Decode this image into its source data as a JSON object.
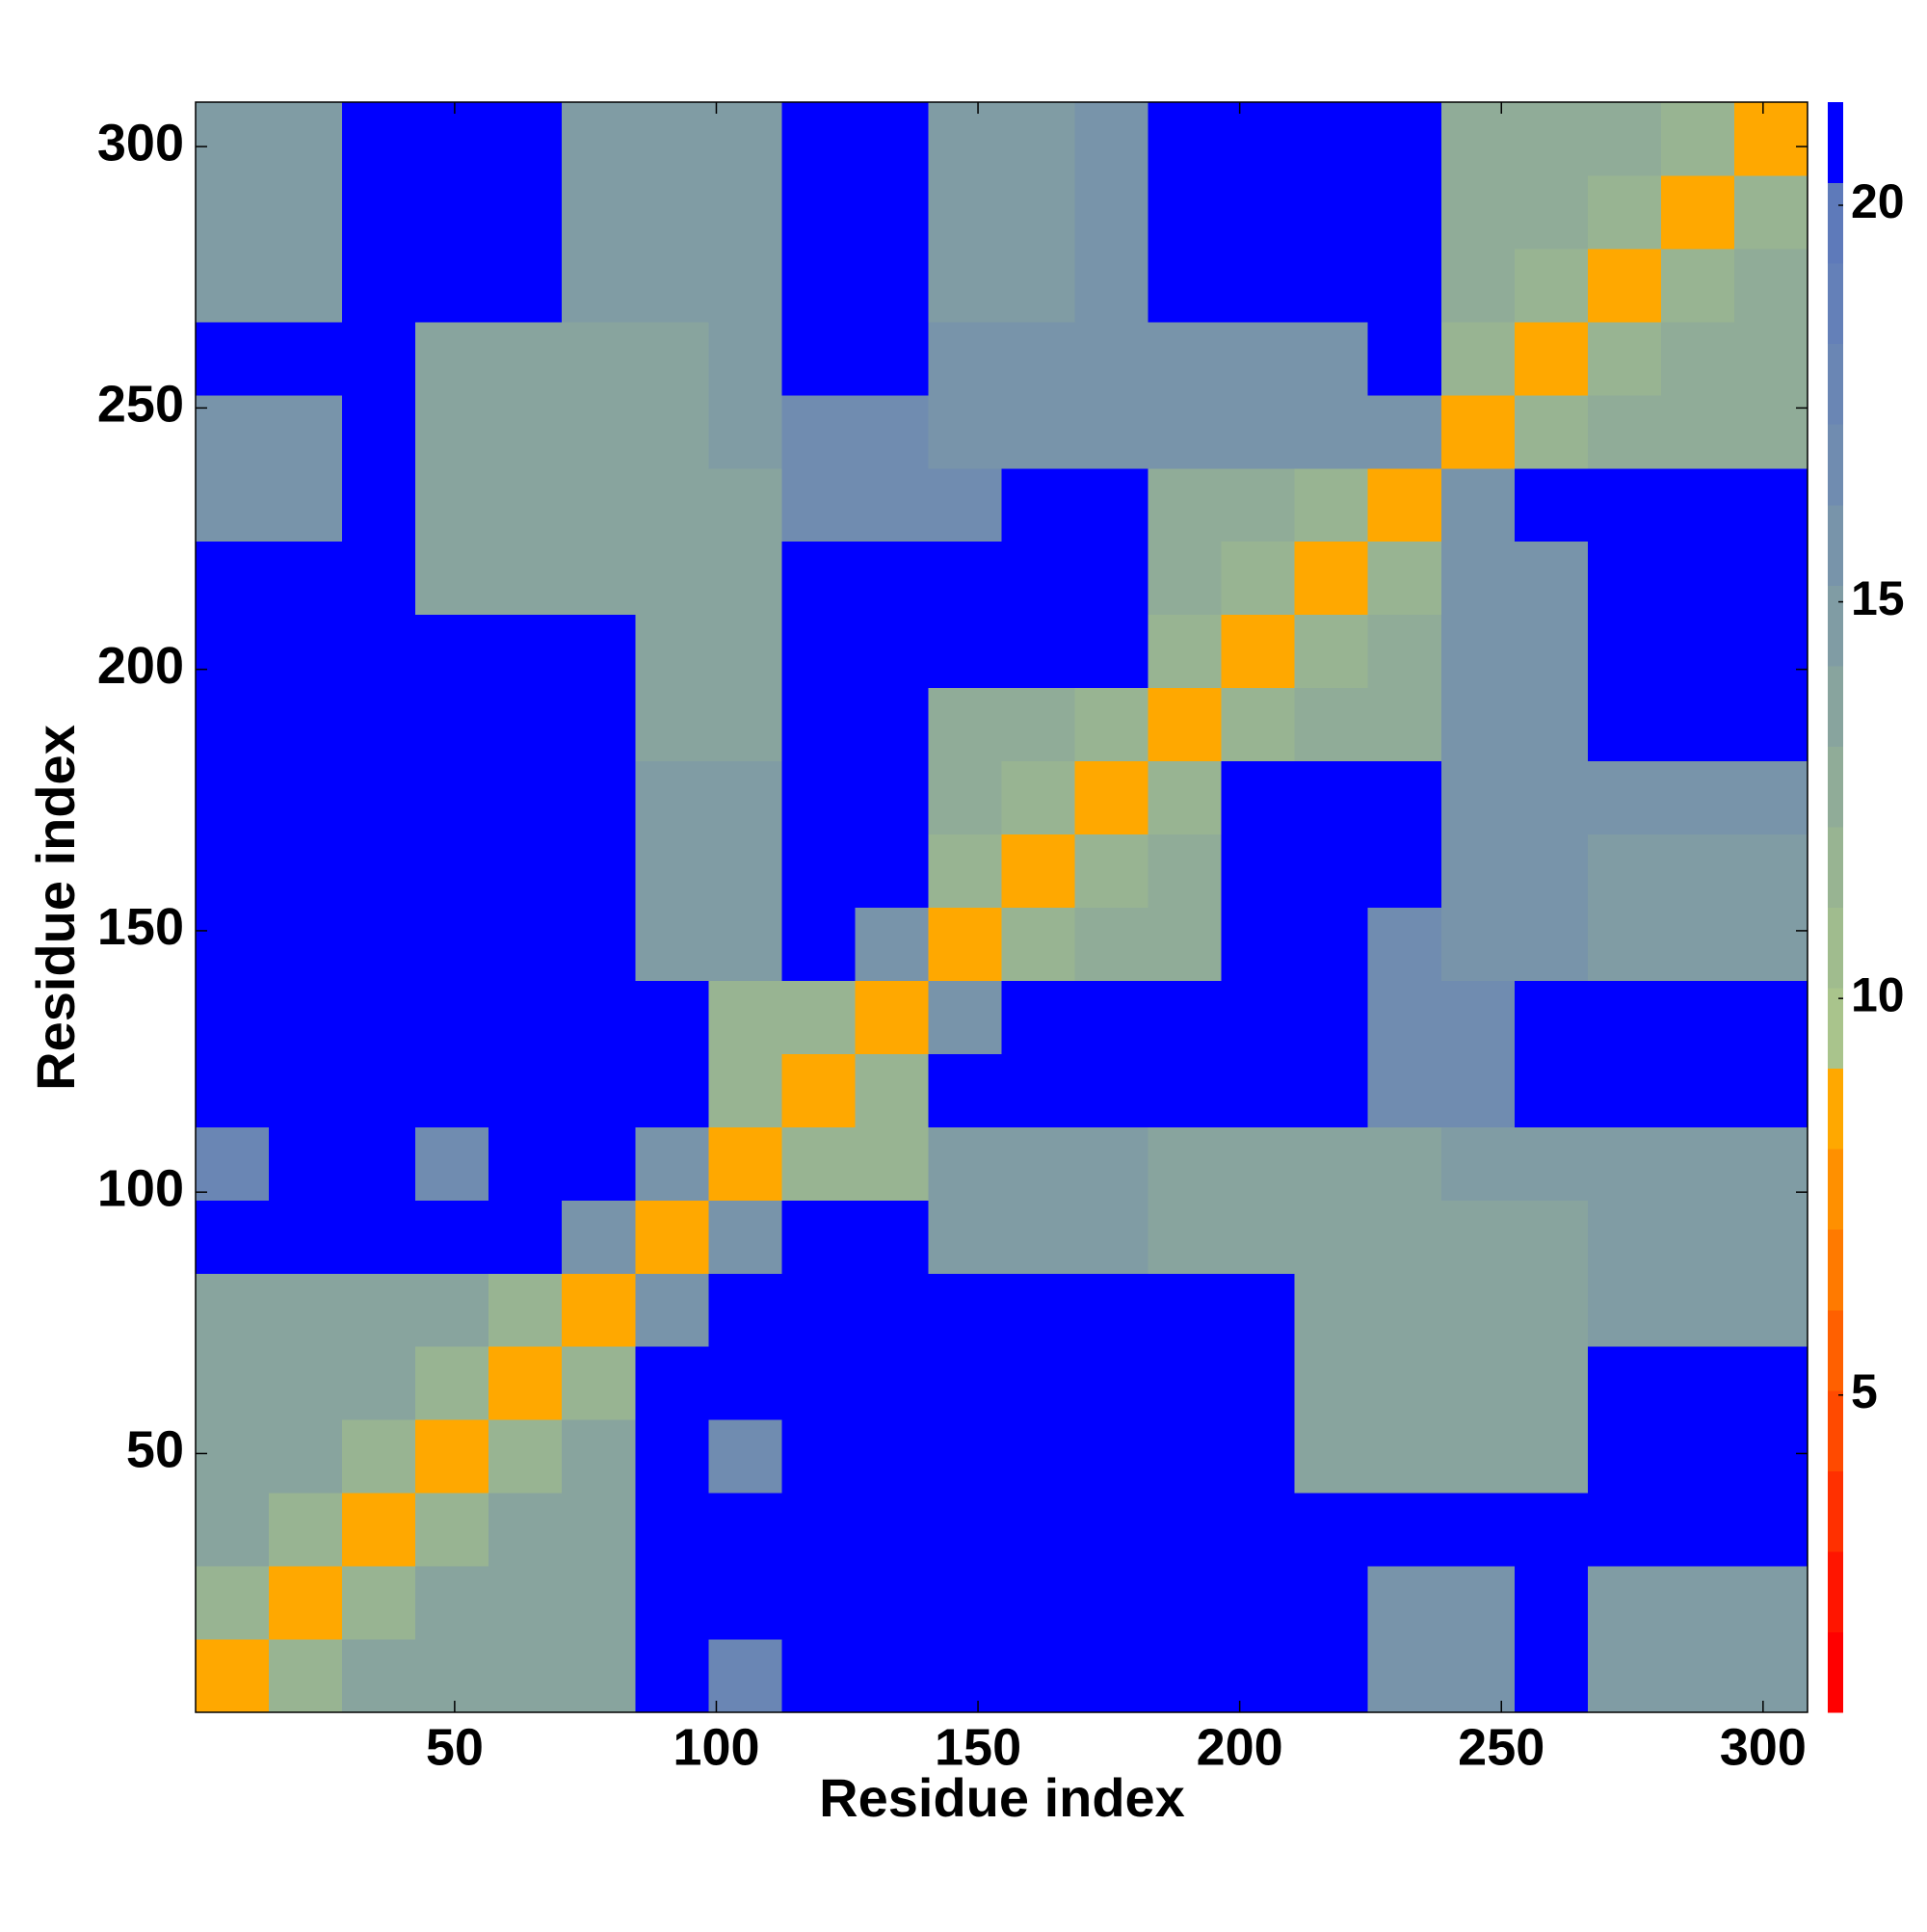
{
  "chart_data": {
    "type": "heatmap",
    "xlabel": "Residue index",
    "ylabel": "Residue index",
    "xbins": [
      0.5,
      14.5,
      28.5,
      42.5,
      56.5,
      70.5,
      84.5,
      98.5,
      112.5,
      126.5,
      140.5,
      154.5,
      168.5,
      182.5,
      196.5,
      210.5,
      224.5,
      238.5,
      252.5,
      266.5,
      280.5,
      294.5,
      308.5
    ],
    "ybins": [
      0.5,
      14.5,
      28.5,
      42.5,
      56.5,
      70.5,
      84.5,
      98.5,
      112.5,
      126.5,
      140.5,
      154.5,
      168.5,
      182.5,
      196.5,
      210.5,
      224.5,
      238.5,
      252.5,
      266.5,
      280.5,
      294.5,
      308.5
    ],
    "values": [
      [
        9,
        12,
        14,
        14,
        14,
        14,
        21,
        18,
        21,
        21,
        21,
        21,
        21,
        21,
        21,
        21,
        16,
        16,
        21,
        15,
        15,
        15
      ],
      [
        12,
        9,
        12,
        14,
        14,
        14,
        21,
        21,
        21,
        21,
        21,
        21,
        21,
        21,
        21,
        21,
        16,
        16,
        21,
        15,
        15,
        15
      ],
      [
        14,
        12,
        9,
        12,
        14,
        14,
        21,
        21,
        21,
        21,
        21,
        21,
        21,
        21,
        21,
        21,
        21,
        21,
        21,
        21,
        21,
        21
      ],
      [
        14,
        14,
        12,
        9,
        12,
        14,
        21,
        17,
        21,
        21,
        21,
        21,
        21,
        21,
        21,
        14,
        14,
        14,
        14,
        21,
        21,
        21
      ],
      [
        14,
        14,
        14,
        12,
        9,
        12,
        21,
        21,
        21,
        21,
        21,
        21,
        21,
        21,
        21,
        14,
        14,
        14,
        14,
        21,
        21,
        21
      ],
      [
        14,
        14,
        14,
        14,
        12,
        9,
        16,
        21,
        21,
        21,
        21,
        21,
        21,
        21,
        21,
        14,
        14,
        14,
        14,
        15,
        15,
        15
      ],
      [
        21,
        21,
        21,
        21,
        21,
        16,
        9,
        16,
        21,
        21,
        15,
        15,
        15,
        14,
        14,
        14,
        14,
        14,
        14,
        15,
        15,
        15
      ],
      [
        18,
        21,
        21,
        17,
        21,
        21,
        16,
        9,
        12,
        12,
        15,
        15,
        15,
        14,
        14,
        14,
        14,
        15,
        15,
        15,
        15,
        15
      ],
      [
        21,
        21,
        21,
        21,
        21,
        21,
        21,
        12,
        9,
        12,
        21,
        21,
        21,
        21,
        21,
        21,
        17,
        17,
        21,
        21,
        21,
        21
      ],
      [
        21,
        21,
        21,
        21,
        21,
        21,
        21,
        12,
        12,
        9,
        16,
        21,
        21,
        21,
        21,
        21,
        17,
        17,
        21,
        21,
        21,
        21
      ],
      [
        21,
        21,
        21,
        21,
        21,
        21,
        15,
        15,
        21,
        16,
        9,
        12,
        13,
        13,
        21,
        21,
        17,
        16,
        16,
        15,
        15,
        15
      ],
      [
        21,
        21,
        21,
        21,
        21,
        21,
        15,
        15,
        21,
        21,
        12,
        9,
        12,
        13,
        21,
        21,
        21,
        16,
        16,
        15,
        15,
        15
      ],
      [
        21,
        21,
        21,
        21,
        21,
        21,
        15,
        15,
        21,
        21,
        13,
        12,
        9,
        12,
        21,
        21,
        21,
        16,
        16,
        16,
        16,
        16
      ],
      [
        21,
        21,
        21,
        21,
        21,
        21,
        14,
        14,
        21,
        21,
        13,
        13,
        12,
        9,
        12,
        13,
        13,
        16,
        16,
        21,
        21,
        21
      ],
      [
        21,
        21,
        21,
        21,
        21,
        21,
        14,
        14,
        21,
        21,
        21,
        21,
        21,
        12,
        9,
        12,
        13,
        16,
        16,
        21,
        21,
        21
      ],
      [
        21,
        21,
        21,
        14,
        14,
        14,
        14,
        14,
        21,
        21,
        21,
        21,
        21,
        13,
        12,
        9,
        12,
        16,
        16,
        21,
        21,
        21
      ],
      [
        16,
        16,
        21,
        14,
        14,
        14,
        14,
        14,
        17,
        17,
        17,
        21,
        21,
        13,
        13,
        12,
        9,
        16,
        21,
        21,
        21,
        21
      ],
      [
        16,
        16,
        21,
        14,
        14,
        14,
        14,
        15,
        17,
        17,
        16,
        16,
        16,
        16,
        16,
        16,
        16,
        9,
        12,
        13,
        13,
        13
      ],
      [
        21,
        21,
        21,
        14,
        14,
        14,
        14,
        15,
        21,
        21,
        16,
        16,
        16,
        16,
        16,
        16,
        21,
        12,
        9,
        12,
        13,
        13
      ],
      [
        15,
        15,
        21,
        21,
        21,
        15,
        15,
        15,
        21,
        21,
        15,
        15,
        16,
        21,
        21,
        21,
        21,
        13,
        12,
        9,
        12,
        13
      ],
      [
        15,
        15,
        21,
        21,
        21,
        15,
        15,
        15,
        21,
        21,
        15,
        15,
        16,
        21,
        21,
        21,
        21,
        13,
        13,
        12,
        9,
        12
      ],
      [
        15,
        15,
        21,
        21,
        21,
        15,
        15,
        15,
        21,
        21,
        15,
        15,
        16,
        21,
        21,
        21,
        21,
        13,
        13,
        13,
        12,
        9
      ]
    ],
    "xlim": [
      0.5,
      308.5
    ],
    "ylim": [
      0.5,
      308.5
    ],
    "xticks": [
      50,
      100,
      150,
      200,
      250,
      300
    ],
    "yticks": [
      50,
      100,
      150,
      200,
      250,
      300
    ],
    "clim": [
      1,
      21.3
    ],
    "cticks": [
      5,
      10,
      15,
      20
    ],
    "colorscale": [
      "#ff0000",
      "#ff1500",
      "#ff3000",
      "#ff4a00",
      "#ff6000",
      "#ff7a00",
      "#ff9000",
      "#ffa800",
      "#a9c48c",
      "#a0bc8e",
      "#98b492",
      "#90ac98",
      "#88a49e",
      "#809ca4",
      "#7894aa",
      "#708cb0",
      "#6a86b4",
      "#6480b8",
      "#5e7aba",
      "#0000ff"
    ]
  }
}
